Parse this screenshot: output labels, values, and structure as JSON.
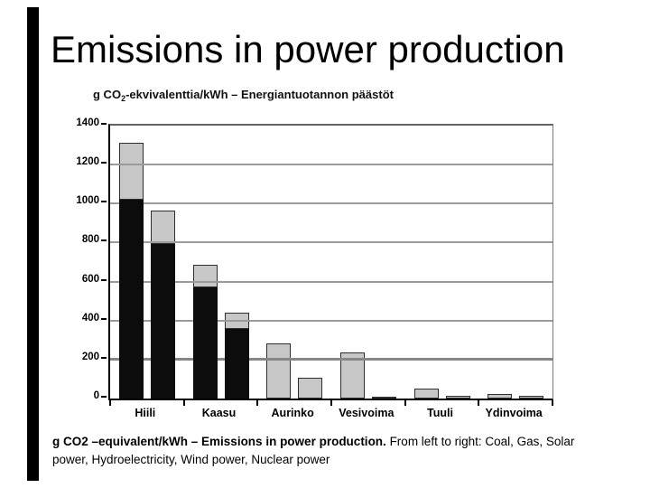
{
  "slide": {
    "title": "Emissions in power production",
    "background_color": "#ffffff",
    "accent_bar_color": "#000000"
  },
  "caption": {
    "bold": "g CO2 –equivalent/kWh – Emissions in power production.",
    "regular": " From left to right: Coal, Gas, Solar power, Hydroelectricity, Wind power, Nuclear power"
  },
  "chart_data": {
    "type": "bar",
    "title": "g CO2-ekvivalenttia/kWh – Energiantuotannon päästöt",
    "title_parts": {
      "prefix": "g CO",
      "subscript": "2",
      "suffix": "-ekvivalenttia/kWh – Energiantuotannon päästöt"
    },
    "categories": [
      "Hiili",
      "Kaasu",
      "Aurinko",
      "Vesivoima",
      "Tuuli",
      "Ydinvoima"
    ],
    "bars_per_category": 2,
    "bars": [
      {
        "category": "Hiili",
        "black_value": 1020,
        "total_value": 1310
      },
      {
        "category": "Hiili",
        "black_value": 795,
        "total_value": 965
      },
      {
        "category": "Kaasu",
        "black_value": 570,
        "total_value": 685
      },
      {
        "category": "Kaasu",
        "black_value": 355,
        "total_value": 440
      },
      {
        "category": "Aurinko",
        "black_value": 0,
        "total_value": 285
      },
      {
        "category": "Aurinko",
        "black_value": 0,
        "total_value": 105
      },
      {
        "category": "Vesivoima",
        "black_value": 0,
        "total_value": 235
      },
      {
        "category": "Vesivoima",
        "black_value": 0,
        "total_value": 8
      },
      {
        "category": "Tuuli",
        "black_value": 0,
        "total_value": 52
      },
      {
        "category": "Tuuli",
        "black_value": 0,
        "total_value": 12
      },
      {
        "category": "Ydinvoima",
        "black_value": 0,
        "total_value": 25
      },
      {
        "category": "Ydinvoima",
        "black_value": 0,
        "total_value": 12
      }
    ],
    "xlabel": "",
    "ylabel": "",
    "ylim": [
      0,
      1400
    ],
    "yticks": [
      0,
      200,
      400,
      600,
      800,
      1000,
      1200,
      1400
    ],
    "grid": true,
    "legend": false,
    "colors": {
      "black_segment": "#0c0c0c",
      "gray_segment": "#c7c7c7",
      "bar_border": "#2e2e2e",
      "gridline": "#9b9b9b",
      "gridline_200": "#878787",
      "axis": "#000000"
    }
  }
}
